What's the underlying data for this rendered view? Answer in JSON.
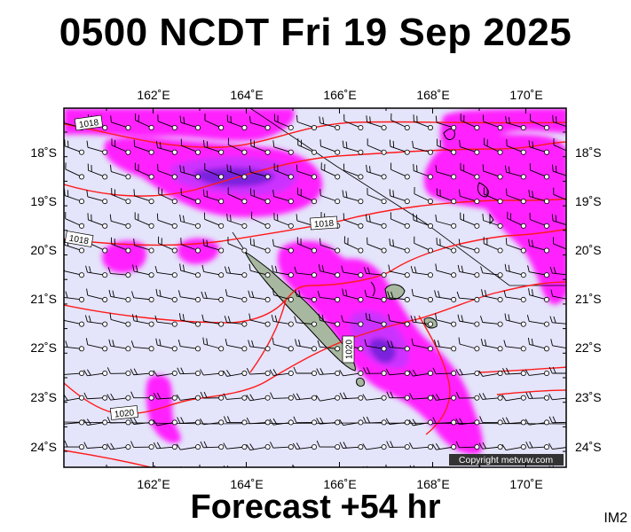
{
  "header": {
    "title": "0500 NCDT Fri 19 Sep 2025"
  },
  "footer": {
    "forecast_label": "Forecast +54 hr",
    "image_code": "IM2"
  },
  "copyright": "Copyright metvuw.com",
  "map": {
    "lon_range": [
      160.2,
      171.0
    ],
    "lat_range": [
      -24.4,
      -17.1
    ],
    "lon_ticks": [
      "162˚E",
      "164˚E",
      "166˚E",
      "168˚E",
      "170˚E"
    ],
    "lat_ticks": [
      "18˚S",
      "19˚S",
      "20˚S",
      "21˚S",
      "22˚S",
      "23˚S",
      "24˚S"
    ],
    "isobar_labels": [
      "1018",
      "1018",
      "1018",
      "1020",
      "1020"
    ],
    "colors": {
      "background": "#e4e4fa",
      "precip_light": "#ff22ff",
      "precip_medium": "#cc33ff",
      "precip_heavy": "#7a22dd",
      "isobar": "#ff1a1a",
      "land": "#a8b8a0",
      "frame": "#000000"
    }
  }
}
